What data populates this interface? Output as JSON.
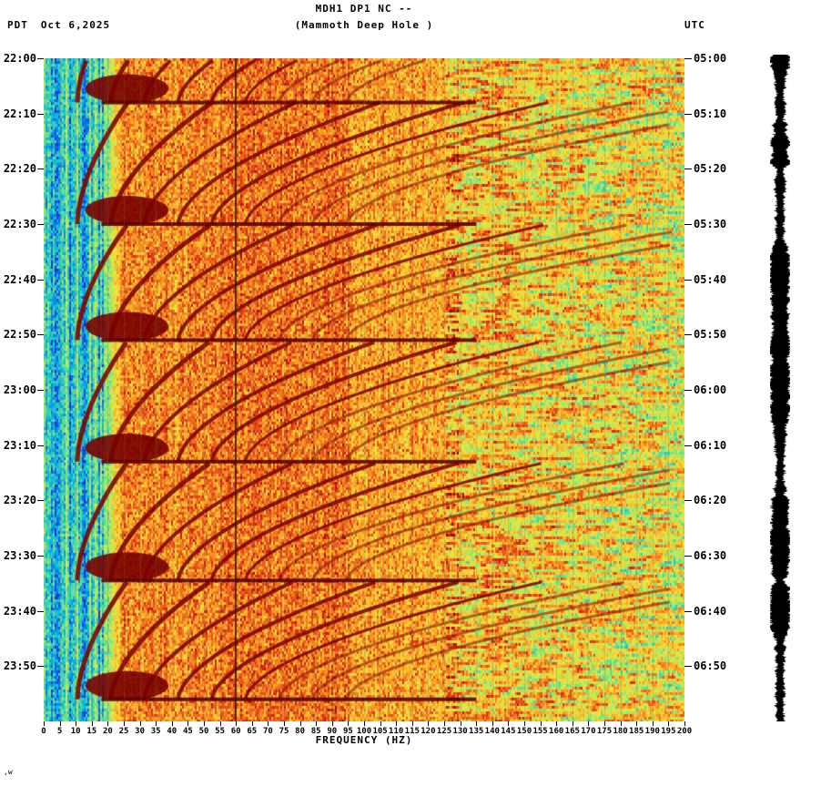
{
  "header": {
    "title_line1": "MDH1 DP1 NC --",
    "title_line2": "(Mammoth Deep Hole )",
    "left_tz": "PDT",
    "date": "Oct 6,2025",
    "right_tz": "UTC"
  },
  "axes": {
    "x_axis_label": "FREQUENCY (HZ)",
    "left_time_labels": [
      "22:00",
      "22:10",
      "22:20",
      "22:30",
      "22:40",
      "22:50",
      "23:00",
      "23:10",
      "23:20",
      "23:30",
      "23:40",
      "23:50"
    ],
    "right_time_labels": [
      "05:00",
      "05:10",
      "05:20",
      "05:30",
      "05:40",
      "05:50",
      "06:00",
      "06:10",
      "06:20",
      "06:30",
      "06:40",
      "06:50"
    ],
    "freq_ticks": [
      "0",
      "5",
      "10",
      "15",
      "20",
      "25",
      "30",
      "35",
      "40",
      "45",
      "50",
      "55",
      "60",
      "65",
      "70",
      "75",
      "80",
      "85",
      "90",
      "95",
      "100",
      "105",
      "110",
      "115",
      "120",
      "125",
      "130",
      "135",
      "140",
      "145",
      "150",
      "155",
      "160",
      "165",
      "170",
      "175",
      "180",
      "185",
      "190",
      "195",
      "200"
    ]
  },
  "footer": {
    "note": ",w"
  },
  "chart_data": {
    "type": "heatmap",
    "title": "MDH1 DP1 NC -- (Mammoth Deep Hole )",
    "xlabel": "FREQUENCY (HZ)",
    "x_range_hz": [
      0,
      200
    ],
    "x_tick_step_hz": 5,
    "y_axis_left": {
      "timezone": "PDT",
      "date": "Oct 6,2025",
      "start": "22:00",
      "end": "23:59",
      "tick_step_minutes": 10
    },
    "y_axis_right": {
      "timezone": "UTC",
      "start": "05:00",
      "end": "06:59",
      "tick_step_minutes": 10
    },
    "duration_minutes": 120,
    "grid": true,
    "legend": "none",
    "palette_low_to_high": [
      "#00008C",
      "#1E3CDC",
      "#00B4E6",
      "#5ADCA0",
      "#B4EB5A",
      "#F5E13C",
      "#FAAA28",
      "#EB5A1E",
      "#C81E14",
      "#780000"
    ],
    "features": {
      "power_line_hz": 60,
      "quiet_band_hz": [
        0,
        20
      ],
      "intense_band_hz": [
        24,
        130
      ],
      "speckle_band_hz": [
        130,
        200
      ],
      "event_separator_minutes": [
        8,
        30,
        51,
        73,
        94.5,
        116
      ],
      "harmonic_fan_base_hz": 10.5,
      "harmonic_fan_count": 9,
      "description": "Repeating harmonic chirp fans roughly every 21 minutes sweep upward from ~20 Hz past 150 Hz (dark red arcs); saturated dark-red energy fills 25-130 Hz; cyan/blue quiet background below 20 Hz with vertical streaks; speckled orange-red horizontal streaking 130-200 Hz; a dark vertical 60 Hz power-line runs the full height; a solid black seismogram amplitude bar runs along the right edge."
    }
  }
}
